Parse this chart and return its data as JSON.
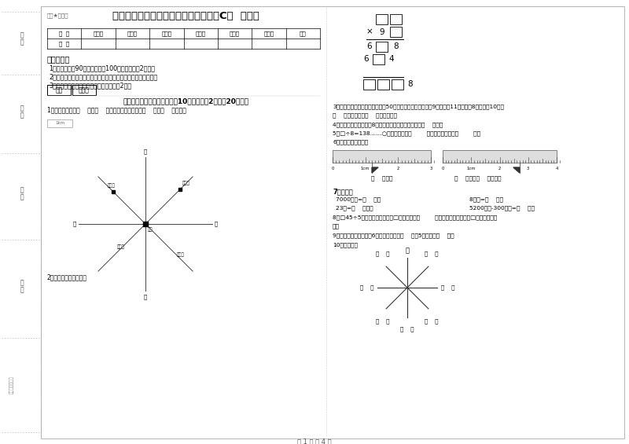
{
  "title": "人教版三年级数学下学期过关检测试卷C卷  附答案",
  "subtitle": "趣题★自用图",
  "page_footer": "第 1 页 共 4 页",
  "bg_color": "#ffffff",
  "text_color": "#000000",
  "table_headers": [
    "题  号",
    "填空题",
    "选择题",
    "判断题",
    "计算题",
    "综合题",
    "应用题",
    "总分"
  ],
  "table_row": [
    "得  分",
    "",
    "",
    "",
    "",
    "",
    "",
    ""
  ],
  "exam_notice_title": "考试须知：",
  "exam_notices": [
    "1、考试时间：90分钟，满分为100分（含卷面分2分）。",
    "2、请首先按要求在试卷的指定位置填写您的姓名、班级、学号。",
    "3、不要在试卷上乱写乱画，卷面不整洁扣2分。"
  ],
  "score_label": "得分",
  "reviewer_label": "评卷人",
  "section1_title": "一、用心思考，正确填空（共10小题，每题2分，共20分）。",
  "q1": "1、小红家在学校（    ）方（    ）米处；小明家在学校（    ）方（    ）米处。",
  "q2": "2、在里填上适当的数。",
  "q3a": "3、体育老师对第一小组同学进行50米跑测试，成绩如下小红9秒，小丽11秒，小明8秒，小军10秒。",
  "q3b": "（    ）跑得最快，（    ）跑得最慢。",
  "q4": "4、小明从一楼到三楼用8秒，照这样他从一楼到五楼用（    ）秒。",
  "q5": "5、□÷8=138……○，余数最大填（        ），这时被除数是（        ）。",
  "q6": "6、量出钉子的长度。",
  "q7_title": "7、换算。",
  "q7_line1a": "7000千克=（    ）吨",
  "q7_line1b": "8千克=（    ）克",
  "q7_line2a": "23吨=（    ）千克",
  "q7_line2b": "5200千克-300千克=（    ）吨",
  "q8a": "8、□45÷5，要使商是两位数，□里最大可填（        ）；要使商是三位数，□里最小应填（",
  "q8b": "）。",
  "q9": "9、把一根绳子平均分成6份，每份是它的（    ），5份是它的（    ）。",
  "q10": "10、填一填。",
  "sidebar_labels": [
    "学",
    "号",
    "姓",
    "名",
    "班",
    "级",
    "学",
    "校"
  ],
  "sidebar_label2": "装订线（请勿）"
}
